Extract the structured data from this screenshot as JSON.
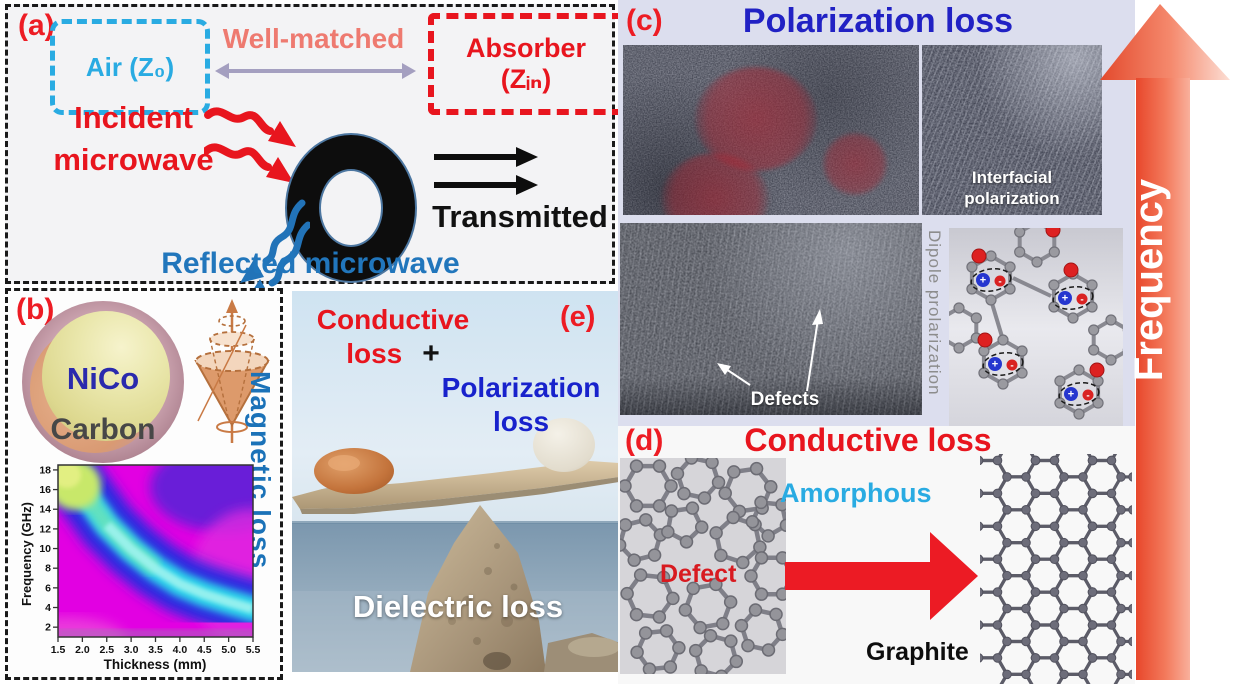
{
  "panel_a": {
    "label": "(a)",
    "air_box_label": "Air (Z₀)",
    "well_matched_label": "Well-matched",
    "absorber_line1": "Absorber",
    "absorber_line2": "(Zᵢₙ)",
    "incident_line1": "Incident",
    "incident_line2": "microwave",
    "transmitted_label": "Transmitted",
    "reflected_label": "Reflected microwave"
  },
  "panel_b": {
    "label": "(b)",
    "core_label": "NiCo",
    "shell_label": "Carbon",
    "loss_label": "Magnetic loss"
  },
  "chart_data": {
    "type": "heatmap",
    "title": "",
    "xlabel": "Thickness (mm)",
    "ylabel": "Frequency (GHz)",
    "xlim": [
      1.5,
      5.5
    ],
    "ylim": [
      1,
      18.5
    ],
    "x_ticks": [
      "1.5",
      "2.0",
      "2.5",
      "3.0",
      "3.5",
      "4.0",
      "4.5",
      "5.0",
      "5.5"
    ],
    "y_ticks": [
      "2",
      "4",
      "6",
      "8",
      "10",
      "12",
      "14",
      "16",
      "18"
    ],
    "grid": false,
    "legend": "none",
    "colormap_low_to_high_loss": [
      "#ee00ee",
      "#7b2fd4",
      "#2a2ae0",
      "#27c8e8",
      "#9fe868",
      "#d8ee7a"
    ],
    "absorption_band": {
      "thickness_mm": [
        1.8,
        2.0,
        2.5,
        3.0,
        3.5,
        4.0,
        4.5,
        5.0,
        5.5
      ],
      "frequency_GHz": [
        17.5,
        16.0,
        12.5,
        10.0,
        8.0,
        6.5,
        5.5,
        4.7,
        4.0
      ]
    },
    "description": "Reflection-loss contour map: strong absorption band (cyan/green) sweeps from high frequency at small thickness down to low frequency at large thickness over a magenta/purple background"
  },
  "panel_c": {
    "label": "(c)",
    "title": "Polarization loss",
    "interfacial_line1": "Interfacial",
    "interfacial_line2": "polarization",
    "defects_label": "Defects",
    "dipole_label": "Dipole prolarization"
  },
  "panel_d": {
    "label": "(d)",
    "title": "Conductive loss",
    "amorphous_label": "Amorphous",
    "defect_label": "Defect",
    "graphite_label": "Graphite"
  },
  "panel_e": {
    "label": "(e)",
    "conductive_line1": "Conductive",
    "conductive_line2": "loss",
    "plus": "+",
    "polarization_line1": "Polarization",
    "polarization_line2": "loss",
    "dielectric_label": "Dielectric loss"
  },
  "frequency_arrow": {
    "label": "Frequency"
  },
  "colors": {
    "accent_red": "#e8151e",
    "accent_cyan": "#29abe2",
    "title_blue": "#2121c4",
    "reflected_blue": "#2176bc",
    "magnetic_blue": "#1b72b8",
    "salmon": "#ee7a70",
    "panel_c_bg": "#dcdeee",
    "frequency_arrow_red": "#ee4f33"
  }
}
